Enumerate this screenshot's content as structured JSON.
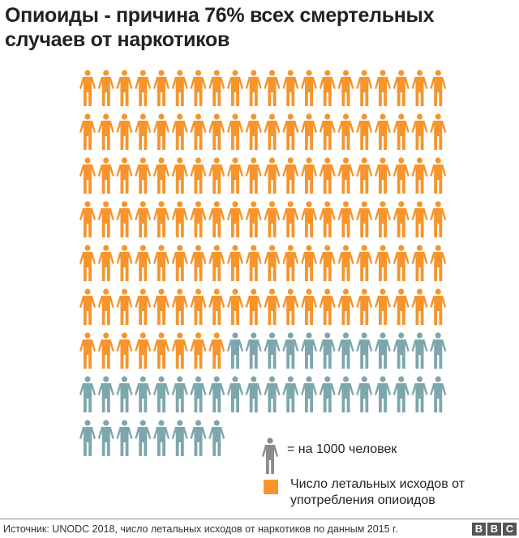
{
  "title": "Опиоиды - причина 76% всех смертельных случаев от наркотиков",
  "chart_data": {
    "type": "pictogram",
    "title": "Опиоиды - причина 76% всех смертельных случаев от наркотиков",
    "unit_per_icon": 1000,
    "columns": 20,
    "series": [
      {
        "name": "Число летальных исходов от употребления опиоидов",
        "icons": 128,
        "color": "#F7942C"
      },
      {
        "icons": 40,
        "color": "#7DA7AC"
      }
    ],
    "total_icons": 168
  },
  "legend": {
    "unit_label": "= на 1000 человек",
    "unit_icon_color": "#8C8C8C",
    "series_label": "Число летальных исходов от употребления опиоидов"
  },
  "footer": {
    "source": "Источник: UNODC 2018, число летальных исходов от наркотиков по данным 2015 г.",
    "logo": [
      "B",
      "B",
      "C"
    ]
  }
}
